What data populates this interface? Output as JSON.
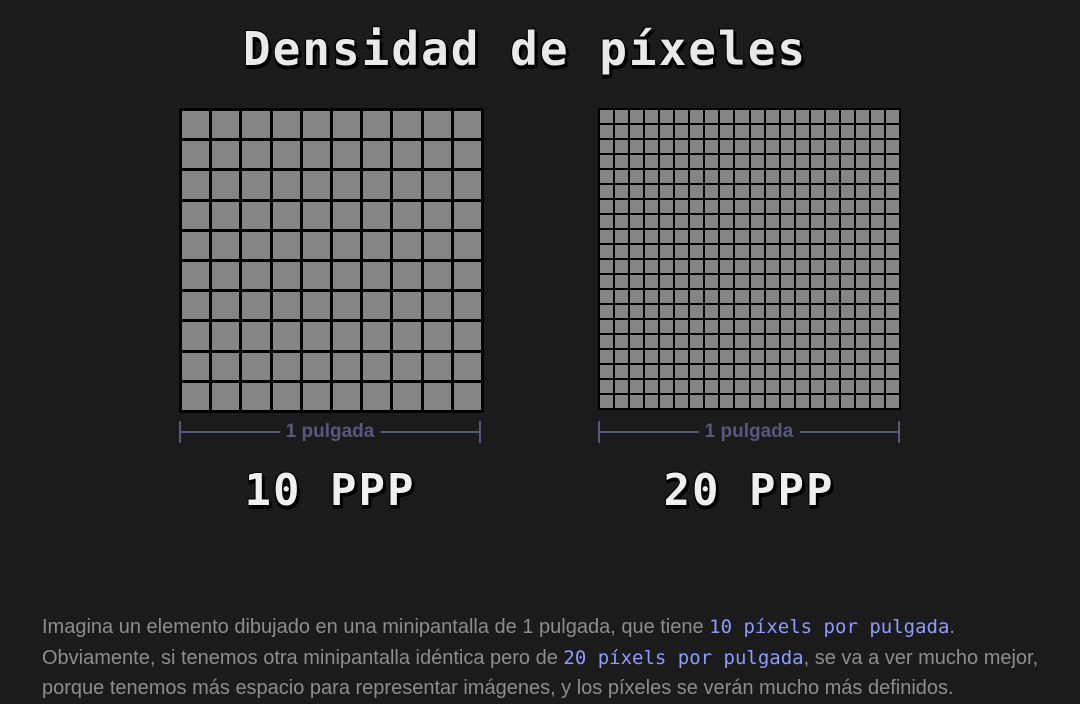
{
  "title": "Densidad de píxeles",
  "diagrams": [
    {
      "id": "low",
      "pixels_per_side": 10,
      "measure_label": "1 pulgada",
      "ppp_label": "10 PPP"
    },
    {
      "id": "high",
      "pixels_per_side": 20,
      "measure_label": "1 pulgada",
      "ppp_label": "20 PPP"
    }
  ],
  "colors": {
    "background": "#1b1b1b",
    "pixel": "#858585",
    "grid_line": "#000000",
    "measure": "#55597e",
    "text": "#8d8d8d",
    "highlight": "#8e9cff"
  },
  "caption": {
    "part1": "Imagina un elemento dibujado en una minipantalla de 1 pulgada, que tiene ",
    "highlight1": "10 píxels por pulgada",
    "part2": ". Obviamente, si tenemos otra minipantalla idéntica pero de ",
    "highlight2": "20 píxels por pulgada",
    "part3": ", se va a ver mucho mejor, porque tenemos más espacio para representar imágenes, y los píxeles se verán mucho más definidos."
  }
}
